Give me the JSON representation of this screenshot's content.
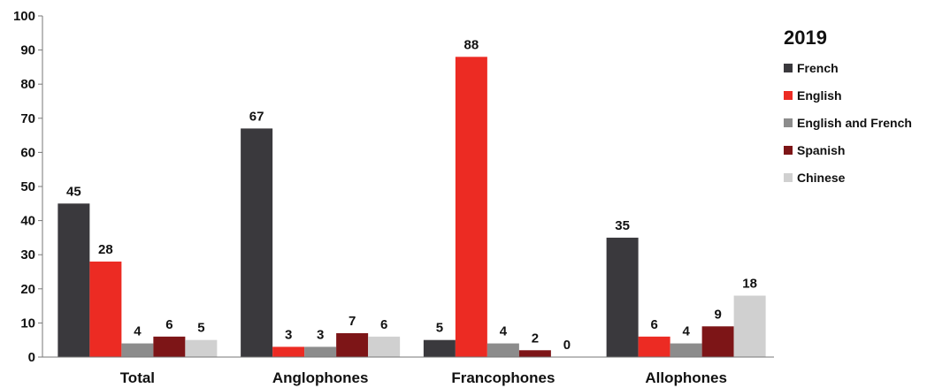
{
  "chart_data": {
    "type": "bar",
    "categories": [
      "Total",
      "Anglophones",
      "Francophones",
      "Allophones"
    ],
    "series": [
      {
        "name": "French",
        "color": "#3a393d",
        "values": [
          45,
          67,
          5,
          35
        ]
      },
      {
        "name": "English",
        "color": "#ec2b23",
        "values": [
          28,
          3,
          88,
          6
        ]
      },
      {
        "name": "English and French",
        "color": "#8c8c8c",
        "values": [
          4,
          3,
          4,
          4
        ]
      },
      {
        "name": "Spanish",
        "color": "#7d1517",
        "values": [
          6,
          7,
          2,
          9
        ]
      },
      {
        "name": "Chinese",
        "color": "#d0d0d0",
        "values": [
          5,
          6,
          0,
          18
        ]
      }
    ],
    "ylim": [
      0,
      100
    ],
    "yticks": [
      0,
      10,
      20,
      30,
      40,
      50,
      60,
      70,
      80,
      90,
      100
    ],
    "legend_title": "2019",
    "legend_position": "top-right",
    "grid": false
  }
}
